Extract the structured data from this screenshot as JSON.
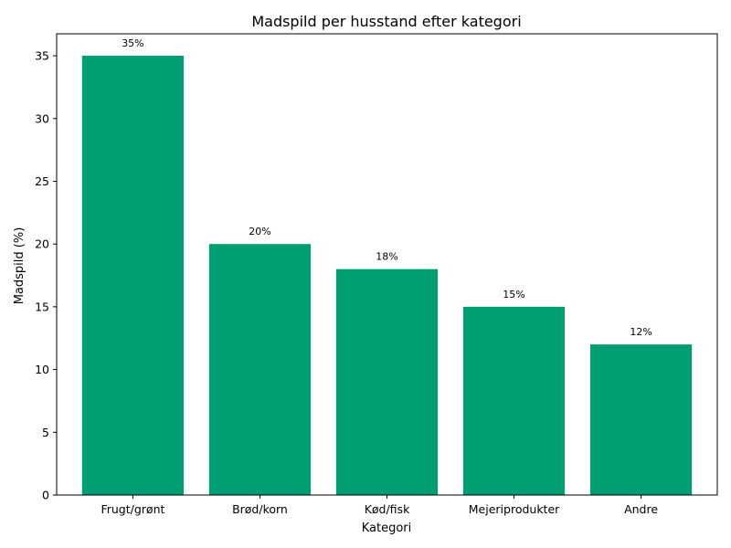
{
  "chart_data": {
    "type": "bar",
    "title": "Madspild per husstand efter kategori",
    "xlabel": "Kategori",
    "ylabel": "Madspild (%)",
    "categories": [
      "Frugt/grønt",
      "Brød/korn",
      "Kød/fisk",
      "Mejeriprodukter",
      "Andre"
    ],
    "values": [
      35,
      20,
      18,
      15,
      12
    ],
    "data_labels": [
      "35%",
      "20%",
      "18%",
      "15%",
      "12%"
    ],
    "ylim": [
      0,
      36.75
    ],
    "yticks": [
      0,
      5,
      10,
      15,
      20,
      25,
      30,
      35
    ],
    "bar_color": "#009E73",
    "grid": false
  }
}
